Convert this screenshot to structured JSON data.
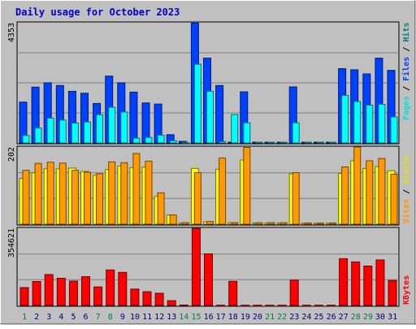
{
  "chart_data": {
    "type": "bar",
    "title": "Daily usage for October 2023",
    "colors": {
      "background": "#c0c0c0",
      "title": "#0000cc",
      "pages": "#0040ff",
      "hits": "#00ffff",
      "visits": "#ff9900",
      "sites": "#ffff00",
      "kbytes": "#ff0000",
      "weekend_day": "#008040",
      "weekday": "#000080"
    },
    "days": [
      "1",
      "2",
      "3",
      "4",
      "5",
      "6",
      "7",
      "8",
      "9",
      "10",
      "11",
      "12",
      "13",
      "14",
      "15",
      "16",
      "17",
      "18",
      "19",
      "20",
      "21",
      "22",
      "23",
      "24",
      "25",
      "26",
      "27",
      "28",
      "29",
      "30",
      "31"
    ],
    "weekend_days": [
      "1",
      "7",
      "8",
      "14",
      "15",
      "21",
      "22",
      "28",
      "29"
    ],
    "panels": [
      {
        "id": "hits",
        "max_label": "4353",
        "ymax": 4353,
        "series": [
          {
            "key": "pages",
            "values": [
              1480,
              2020,
              2180,
              2080,
              1870,
              1800,
              1430,
              2420,
              2180,
              1840,
              1450,
              1410,
              300,
              60,
              4340,
              3070,
              2080,
              30,
              1850,
              30,
              30,
              30,
              2030,
              30,
              30,
              30,
              2690,
              2650,
              2500,
              3070,
              2630
            ]
          },
          {
            "key": "hits",
            "values": [
              270,
              540,
              900,
              830,
              720,
              760,
              1020,
              1290,
              1120,
              170,
              200,
              280,
              80,
              20,
              2850,
              1870,
              50,
              1030,
              730,
              30,
              30,
              30,
              730,
              30,
              30,
              30,
              1720,
              1500,
              1370,
              1400,
              940
            ]
          }
        ]
      },
      {
        "id": "visits",
        "max_label": "202",
        "ymax": 202,
        "series": [
          {
            "key": "sites",
            "values": [
              120,
              135,
              145,
              145,
              147,
              138,
              128,
              143,
              152,
              148,
              150,
              73,
              24,
              3,
              146,
              6,
              144,
              4,
              168,
              3,
              3,
              3,
              132,
              3,
              3,
              3,
              133,
              166,
              146,
              151,
              140
            ]
          },
          {
            "key": "visits",
            "values": [
              141,
              159,
              162,
              160,
              141,
              136,
              132,
              163,
              161,
              185,
              165,
              82,
              24,
              4,
              135,
              7,
              173,
              4,
              201,
              4,
              4,
              4,
              135,
              3,
              3,
              3,
              150,
              202,
              166,
              172,
              131
            ]
          }
        ]
      },
      {
        "id": "kbytes",
        "max_label": "354621",
        "ymax": 354621,
        "series": [
          {
            "key": "kbytes",
            "values": [
              82000,
              110000,
              142000,
              125000,
              112000,
              132000,
              85000,
              163000,
              152000,
              75000,
              63000,
              56000,
              22000,
              2000,
              354000,
              237000,
              1000,
              111000,
              1000,
              1000,
              1000,
              1000,
              116000,
              1000,
              1000,
              1000,
              215000,
              200000,
              181000,
              209000,
              115000
            ]
          }
        ]
      }
    ],
    "legend": {
      "hits_panel": [
        "Pages",
        "/",
        "Files",
        "/",
        "Hits"
      ],
      "visits_panel": [
        "Sites",
        "/",
        "Visits"
      ],
      "kbytes_panel": [
        "KBytes"
      ]
    }
  }
}
